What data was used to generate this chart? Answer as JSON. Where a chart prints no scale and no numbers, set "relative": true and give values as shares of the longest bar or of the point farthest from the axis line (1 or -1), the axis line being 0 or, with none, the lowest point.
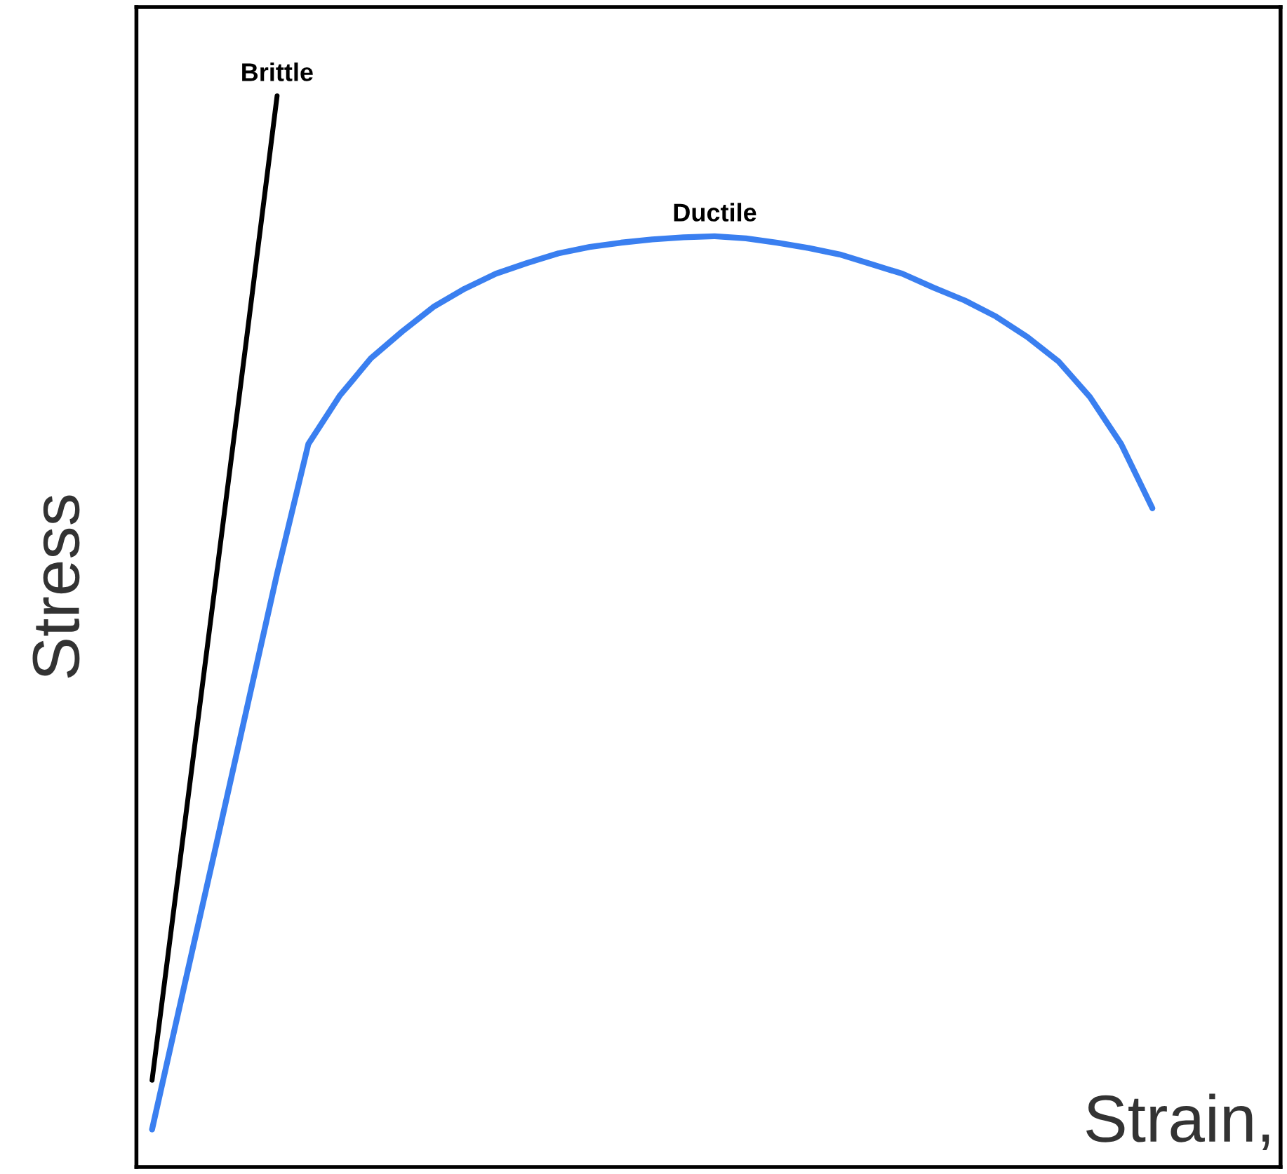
{
  "chart_data": {
    "type": "line",
    "relative": true,
    "xlabel": "Strain,",
    "ylabel": "Stress",
    "legend": false,
    "marker": "none",
    "line_style": "solid",
    "categories": [
      null,
      null,
      null,
      null,
      null,
      null,
      null,
      null,
      null,
      null,
      null,
      null,
      null,
      null,
      null,
      null,
      null,
      null,
      null,
      null,
      null,
      null,
      null,
      null,
      null,
      null,
      null,
      null,
      null,
      null,
      null,
      null,
      null
    ],
    "series": [
      {
        "name": "Brittle",
        "color": "#000000",
        "values": [
          0.081,
          0.31,
          0.539,
          0.768,
          1.0,
          null,
          null,
          null,
          null,
          null,
          null,
          null,
          null,
          null,
          null,
          null,
          null,
          null,
          null,
          null,
          null,
          null,
          null,
          null,
          null,
          null,
          null,
          null,
          null,
          null,
          null,
          null,
          null
        ]
      },
      {
        "name": "Ductile",
        "color": "#3a7ff0",
        "values": [
          0.035,
          0.165,
          0.294,
          0.424,
          0.554,
          0.675,
          0.72,
          0.755,
          0.78,
          0.803,
          0.82,
          0.834,
          0.844,
          0.853,
          0.859,
          0.863,
          0.866,
          0.868,
          0.869,
          0.867,
          0.863,
          0.858,
          0.852,
          0.843,
          0.834,
          0.821,
          0.809,
          0.794,
          0.775,
          0.752,
          0.719,
          0.675,
          0.615
        ]
      }
    ]
  }
}
